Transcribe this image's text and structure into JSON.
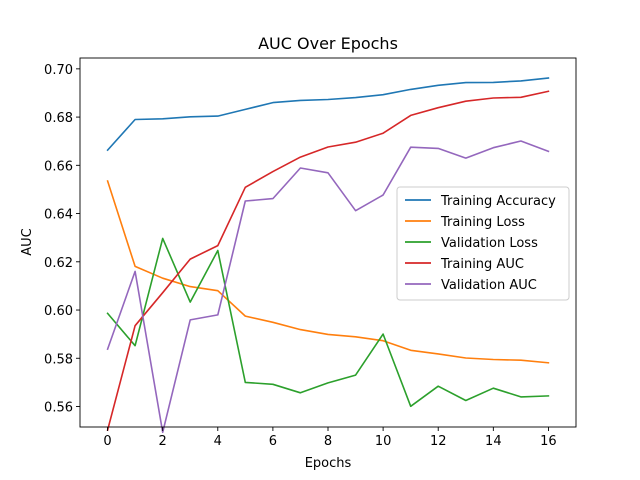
{
  "chart_data": {
    "type": "line",
    "title": "AUC Over Epochs",
    "xlabel": "Epochs",
    "ylabel": "AUC",
    "x": [
      0,
      1,
      2,
      3,
      4,
      5,
      6,
      7,
      8,
      9,
      10,
      11,
      12,
      13,
      14,
      15,
      16
    ],
    "xlim": [
      -1,
      17
    ],
    "ylim": [
      0.5515,
      0.7045
    ],
    "xticks": [
      0,
      2,
      4,
      6,
      8,
      10,
      12,
      14,
      16
    ],
    "yticks": [
      0.56,
      0.58,
      0.6,
      0.62,
      0.64,
      0.66,
      0.68,
      0.7
    ],
    "ytick_labels": [
      "0.56",
      "0.58",
      "0.60",
      "0.62",
      "0.64",
      "0.66",
      "0.68",
      "0.70"
    ],
    "grid": false,
    "legend_position": "center-right",
    "series": [
      {
        "name": "Training Accuracy",
        "color": "#1f77b4",
        "values": [
          0.6663,
          0.679,
          0.6793,
          0.6801,
          0.6804,
          0.6832,
          0.686,
          0.6869,
          0.6873,
          0.6881,
          0.6893,
          0.6915,
          0.6932,
          0.6943,
          0.6944,
          0.695,
          0.6962
        ]
      },
      {
        "name": "Training Loss",
        "color": "#ff7f0e",
        "values": [
          0.6535,
          0.6181,
          0.6132,
          0.6097,
          0.608,
          0.5975,
          0.5949,
          0.5919,
          0.5899,
          0.5889,
          0.5873,
          0.5833,
          0.5818,
          0.5801,
          0.5795,
          0.5792,
          0.5781
        ]
      },
      {
        "name": "Validation Loss",
        "color": "#2ca02c",
        "values": [
          0.5986,
          0.5852,
          0.6297,
          0.6033,
          0.6247,
          0.57,
          0.5692,
          0.5657,
          0.5698,
          0.573,
          0.59,
          0.5601,
          0.5684,
          0.5625,
          0.5676,
          0.564,
          0.5644
        ]
      },
      {
        "name": "Training AUC",
        "color": "#d62728",
        "values": [
          0.5502,
          0.5935,
          0.6072,
          0.6211,
          0.6267,
          0.6509,
          0.6574,
          0.6634,
          0.6676,
          0.6696,
          0.6733,
          0.6807,
          0.6839,
          0.6866,
          0.6879,
          0.6882,
          0.6907
        ]
      },
      {
        "name": "Validation AUC",
        "color": "#9467bd",
        "values": [
          0.5838,
          0.616,
          0.5493,
          0.5959,
          0.598,
          0.6452,
          0.6462,
          0.6589,
          0.6569,
          0.6412,
          0.6477,
          0.6675,
          0.667,
          0.663,
          0.6673,
          0.6701,
          0.6658
        ]
      }
    ]
  }
}
